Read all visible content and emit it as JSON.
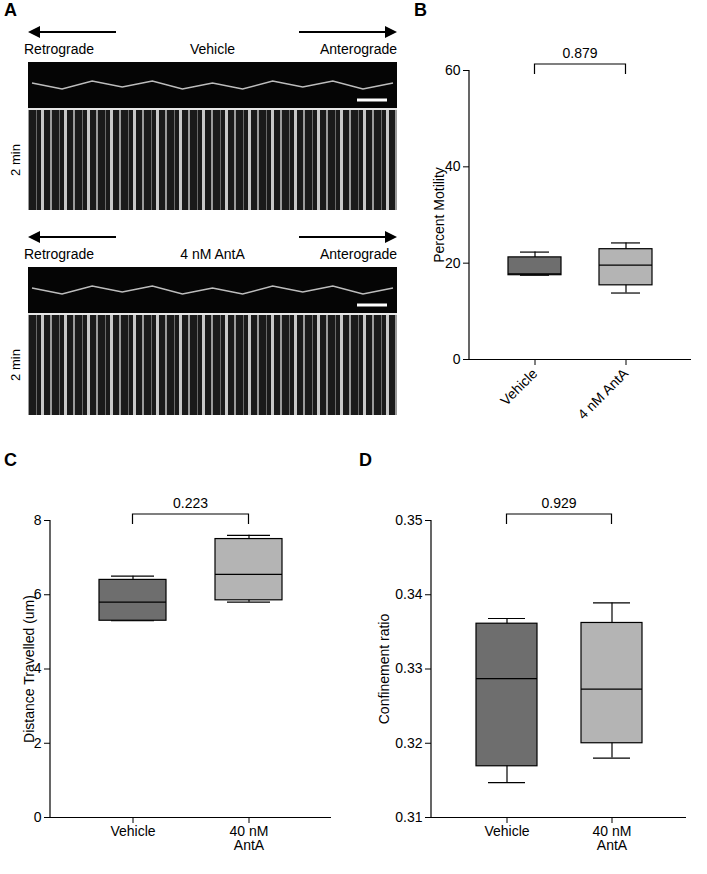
{
  "chart_data": [
    {
      "panel": "A",
      "type": "kymograph",
      "rows": [
        {
          "condition": "Vehicle",
          "left_label": "Retrograde",
          "right_label": "Anterograde",
          "time_label": "2 min"
        },
        {
          "condition": "4 nM AntA",
          "left_label": "Retrograde",
          "right_label": "Anterograde",
          "time_label": "2 min"
        }
      ]
    },
    {
      "panel": "B",
      "type": "box",
      "ylabel": "Percent Motility",
      "categories": [
        "Vehicle",
        "4 nM AntA"
      ],
      "colors": [
        "#6e6e6e",
        "#b4b4b4"
      ],
      "values": [
        {
          "min": 17.5,
          "q1": 17.5,
          "median": 17.8,
          "q3": 21.2,
          "max": 22.3
        },
        {
          "min": 13.8,
          "q1": 15.4,
          "median": 19.6,
          "q3": 22.9,
          "max": 24.2
        }
      ],
      "annotation": "0.879",
      "ylim": [
        0,
        60
      ],
      "yticks": [
        0,
        20,
        40,
        60
      ]
    },
    {
      "panel": "C",
      "type": "box",
      "ylabel": "Distance Travelled (um)",
      "categories": [
        "Vehicle",
        "40 nM AntA"
      ],
      "colors": [
        "#6e6e6e",
        "#b4b4b4"
      ],
      "values": [
        {
          "min": 5.3,
          "q1": 5.3,
          "median": 5.8,
          "q3": 6.4,
          "max": 6.5
        },
        {
          "min": 5.8,
          "q1": 5.85,
          "median": 6.55,
          "q3": 7.5,
          "max": 7.6
        }
      ],
      "annotation": "0.223",
      "ylim": [
        0,
        8
      ],
      "yticks": [
        0,
        2,
        4,
        6,
        8
      ]
    },
    {
      "panel": "D",
      "type": "box",
      "ylabel": "Confinement ratio",
      "categories": [
        "Vehicle",
        "40 nM AntA"
      ],
      "colors": [
        "#6e6e6e",
        "#b4b4b4"
      ],
      "values": [
        {
          "min": 0.3147,
          "q1": 0.3169,
          "median": 0.3287,
          "q3": 0.3361,
          "max": 0.3368
        },
        {
          "min": 0.318,
          "q1": 0.32,
          "median": 0.3273,
          "q3": 0.3362,
          "max": 0.3389
        }
      ],
      "annotation": "0.929",
      "ylim": [
        0.31,
        0.35
      ],
      "yticks": [
        0.31,
        0.32,
        0.33,
        0.34,
        0.35
      ]
    }
  ]
}
